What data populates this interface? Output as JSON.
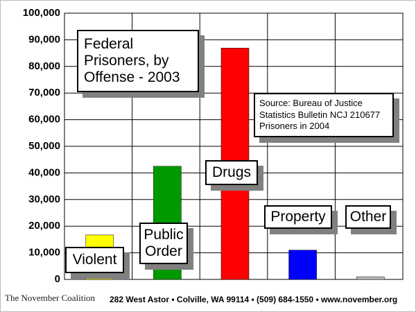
{
  "chart_data": {
    "type": "bar",
    "title": "Federal Prisoners, by Offense - 2003",
    "source": "Source: Bureau of Justice Statistics Bulletin NCJ 210677 Prisoners in 2004",
    "categories": [
      "Violent",
      "Public Order",
      "Drugs",
      "Property",
      "Other"
    ],
    "values": [
      16700,
      42500,
      86900,
      11000,
      1000
    ],
    "colors": [
      "#ffff00",
      "#009900",
      "#ff0000",
      "#0000ff",
      "#c0c0c0"
    ],
    "ylim": [
      0,
      100000
    ],
    "yticks": [
      0,
      {
        "value": 10000,
        "label": "10,000"
      },
      {
        "value": 20000,
        "label": "20,000"
      },
      {
        "value": 30000,
        "label": "30,000"
      },
      {
        "value": 40000,
        "label": "40,000"
      },
      {
        "value": 50000,
        "label": "50,000"
      },
      {
        "value": 60000,
        "label": "60,000"
      },
      {
        "value": 70000,
        "label": "70,000"
      },
      {
        "value": 80000,
        "label": "80,000"
      },
      {
        "value": 90000,
        "label": "90,000"
      },
      {
        "value": 100000,
        "label": "100,000"
      }
    ],
    "grid": true
  },
  "footer": {
    "logo": "The November Coalition",
    "text": "282 West Astor • Colville, WA 99114 • (509) 684-1550 • www.november.org"
  }
}
